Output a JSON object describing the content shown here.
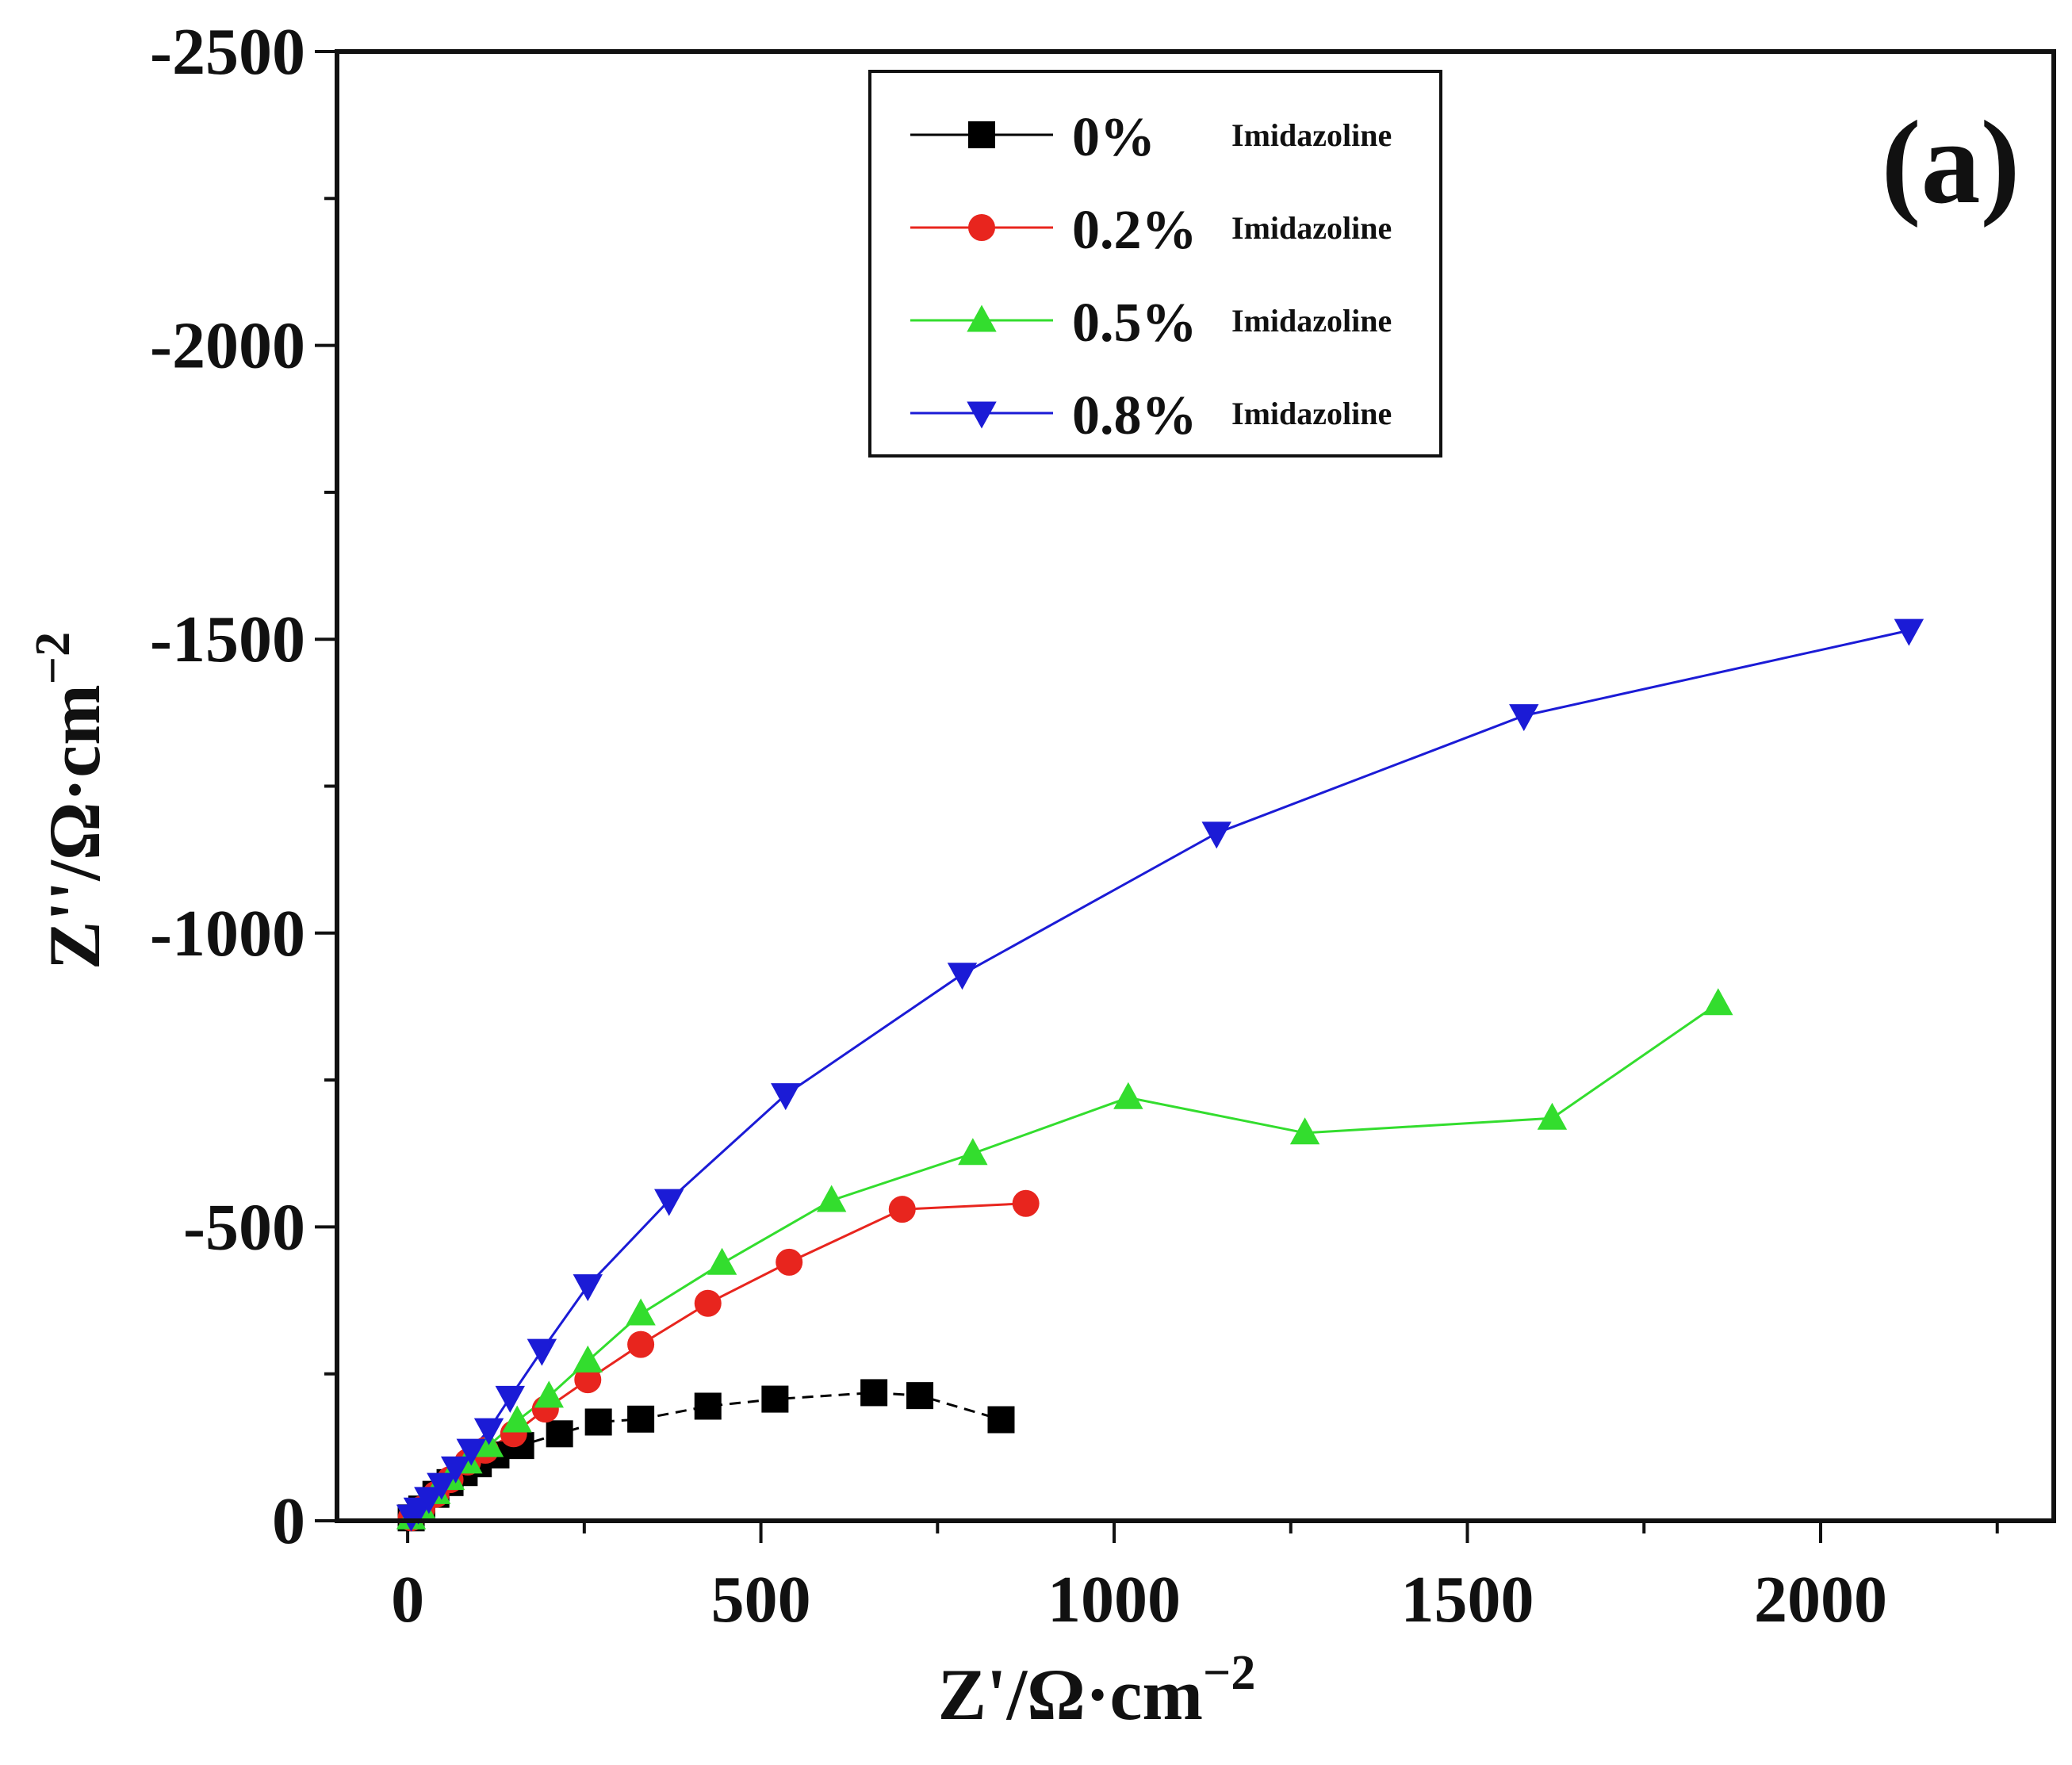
{
  "panel_label": "(a)",
  "chart_data": {
    "type": "scatter",
    "title": "",
    "xlabel": "Z'/Ω·cm",
    "xlabel_exp": "−2",
    "ylabel": "Z''/Ω·cm",
    "ylabel_exp": "−2",
    "xlim": [
      -100,
      2330
    ],
    "ylim": [
      0,
      -2500
    ],
    "x_ticks": [
      0,
      500,
      1000,
      1500,
      2000
    ],
    "x_tick_labels": [
      "0",
      "500",
      "1000",
      "1500",
      "2000"
    ],
    "y_ticks": [
      0,
      -500,
      -1000,
      -1500,
      -2000,
      -2500
    ],
    "y_tick_labels": [
      "0",
      "-500",
      "-1000",
      "-1500",
      "-2000",
      "-2500"
    ],
    "grid": false,
    "legend_position": "top-center",
    "series": [
      {
        "name": "0%",
        "suffix": "Imidazoline",
        "color": "#000000",
        "marker": "square",
        "line_style": "dashed",
        "points": [
          [
            5,
            -5
          ],
          [
            20,
            -20
          ],
          [
            40,
            -45
          ],
          [
            60,
            -65
          ],
          [
            80,
            -82
          ],
          [
            100,
            -97
          ],
          [
            125,
            -112
          ],
          [
            160,
            -128
          ],
          [
            215,
            -148
          ],
          [
            270,
            -168
          ],
          [
            330,
            -173
          ],
          [
            425,
            -195
          ],
          [
            520,
            -207
          ],
          [
            660,
            -218
          ],
          [
            725,
            -213
          ],
          [
            840,
            -172
          ]
        ]
      },
      {
        "name": "0.2%",
        "suffix": "Imidazoline",
        "color": "#e8251e",
        "marker": "circle",
        "line_style": "solid",
        "points": [
          [
            5,
            -5
          ],
          [
            20,
            -20
          ],
          [
            40,
            -45
          ],
          [
            60,
            -70
          ],
          [
            85,
            -100
          ],
          [
            110,
            -120
          ],
          [
            150,
            -148
          ],
          [
            195,
            -190
          ],
          [
            255,
            -240
          ],
          [
            330,
            -300
          ],
          [
            425,
            -370
          ],
          [
            540,
            -440
          ],
          [
            700,
            -530
          ],
          [
            875,
            -540
          ]
        ]
      },
      {
        "name": "0.5%",
        "suffix": "Imidazoline",
        "color": "#33dd2e",
        "marker": "triangle-up",
        "line_style": "solid",
        "points": [
          [
            5,
            -5
          ],
          [
            20,
            -20
          ],
          [
            40,
            -48
          ],
          [
            60,
            -72
          ],
          [
            85,
            -100
          ],
          [
            115,
            -128
          ],
          [
            155,
            -170
          ],
          [
            200,
            -212
          ],
          [
            255,
            -272
          ],
          [
            330,
            -352
          ],
          [
            445,
            -438
          ],
          [
            600,
            -545
          ],
          [
            800,
            -625
          ],
          [
            1020,
            -720
          ],
          [
            1270,
            -660
          ],
          [
            1620,
            -685
          ],
          [
            1855,
            -880
          ]
        ]
      },
      {
        "name": "0.8%",
        "suffix": "Imidazoline",
        "color": "#1b1bd6",
        "marker": "triangle-down",
        "line_style": "solid",
        "points": [
          [
            5,
            -8
          ],
          [
            15,
            -20
          ],
          [
            30,
            -38
          ],
          [
            48,
            -62
          ],
          [
            68,
            -90
          ],
          [
            90,
            -120
          ],
          [
            115,
            -155
          ],
          [
            145,
            -210
          ],
          [
            190,
            -290
          ],
          [
            255,
            -400
          ],
          [
            370,
            -545
          ],
          [
            535,
            -725
          ],
          [
            785,
            -930
          ],
          [
            1145,
            -1170
          ],
          [
            1580,
            -1370
          ],
          [
            2125,
            -1515
          ]
        ]
      }
    ]
  }
}
